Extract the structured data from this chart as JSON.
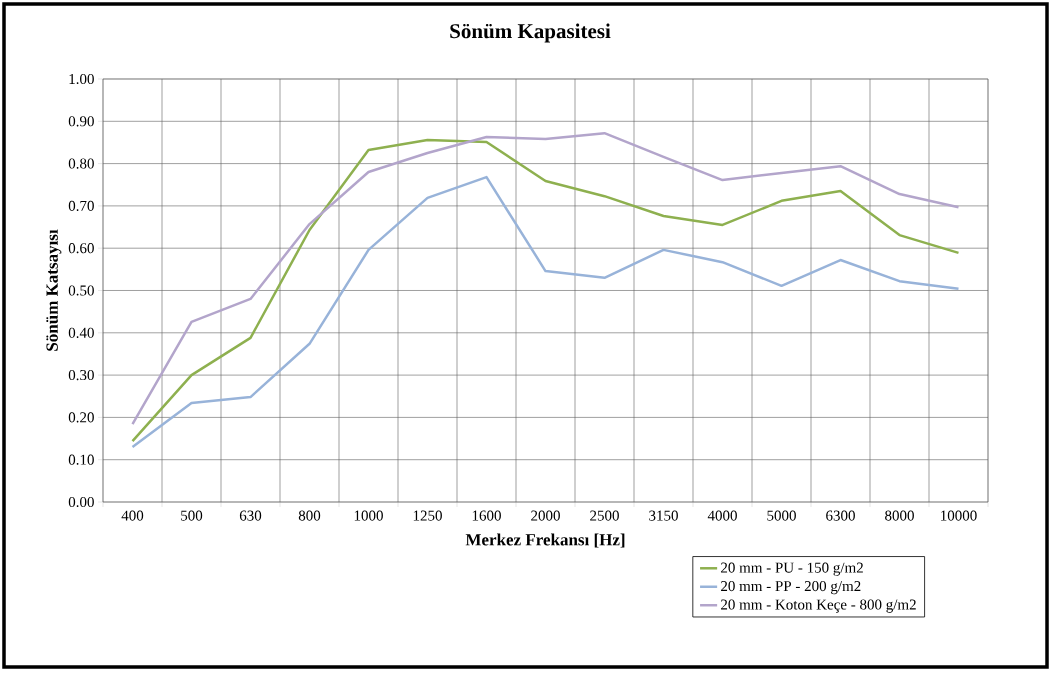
{
  "chart_data": {
    "type": "line",
    "title": "Sönüm  Kapasitesi",
    "xlabel": "Merkez Frekansı [Hz]",
    "ylabel": "Sönüm Katsayısı",
    "categories": [
      "400",
      "500",
      "630",
      "800",
      "1000",
      "1250",
      "1600",
      "2000",
      "2500",
      "3150",
      "4000",
      "5000",
      "6300",
      "8000",
      "10000"
    ],
    "series": [
      {
        "name": "20 mm - PU - 150 g/m2",
        "color": "#8eb04f",
        "values": [
          0.144,
          0.3,
          0.388,
          0.643,
          0.832,
          0.856,
          0.851,
          0.759,
          0.723,
          0.676,
          0.655,
          0.712,
          0.735,
          0.631,
          0.589
        ]
      },
      {
        "name": "20 mm - PP - 200 g/m2",
        "color": "#98b3d9",
        "values": [
          0.13,
          0.234,
          0.248,
          0.374,
          0.596,
          0.719,
          0.768,
          0.546,
          0.53,
          0.596,
          0.567,
          0.511,
          0.572,
          0.522,
          0.504
        ]
      },
      {
        "name": "20 mm - Koton Keçe - 800 g/m2",
        "color": "#b3a5cb",
        "values": [
          0.184,
          0.426,
          0.48,
          0.657,
          0.78,
          0.825,
          0.863,
          0.858,
          0.872,
          0.816,
          0.761,
          0.778,
          0.794,
          0.728,
          0.697
        ]
      }
    ],
    "ylim": [
      0,
      1
    ],
    "yticks": [
      {
        "value": 0,
        "label": "0.00"
      },
      {
        "value": 0.1,
        "label": "0.10"
      },
      {
        "value": 0.2,
        "label": "0.20"
      },
      {
        "value": 0.3,
        "label": "0.30"
      },
      {
        "value": 0.4,
        "label": "0.40"
      },
      {
        "value": 0.5,
        "label": "0.50"
      },
      {
        "value": 0.6,
        "label": "0.60"
      },
      {
        "value": 0.7,
        "label": "0.70"
      },
      {
        "value": 0.8,
        "label": "0.80"
      },
      {
        "value": 0.9,
        "label": "0.90"
      },
      {
        "value": 1,
        "label": "1.00"
      }
    ],
    "grid": true,
    "legend": "bottom right",
    "marker": "none",
    "line_style": "solid"
  }
}
